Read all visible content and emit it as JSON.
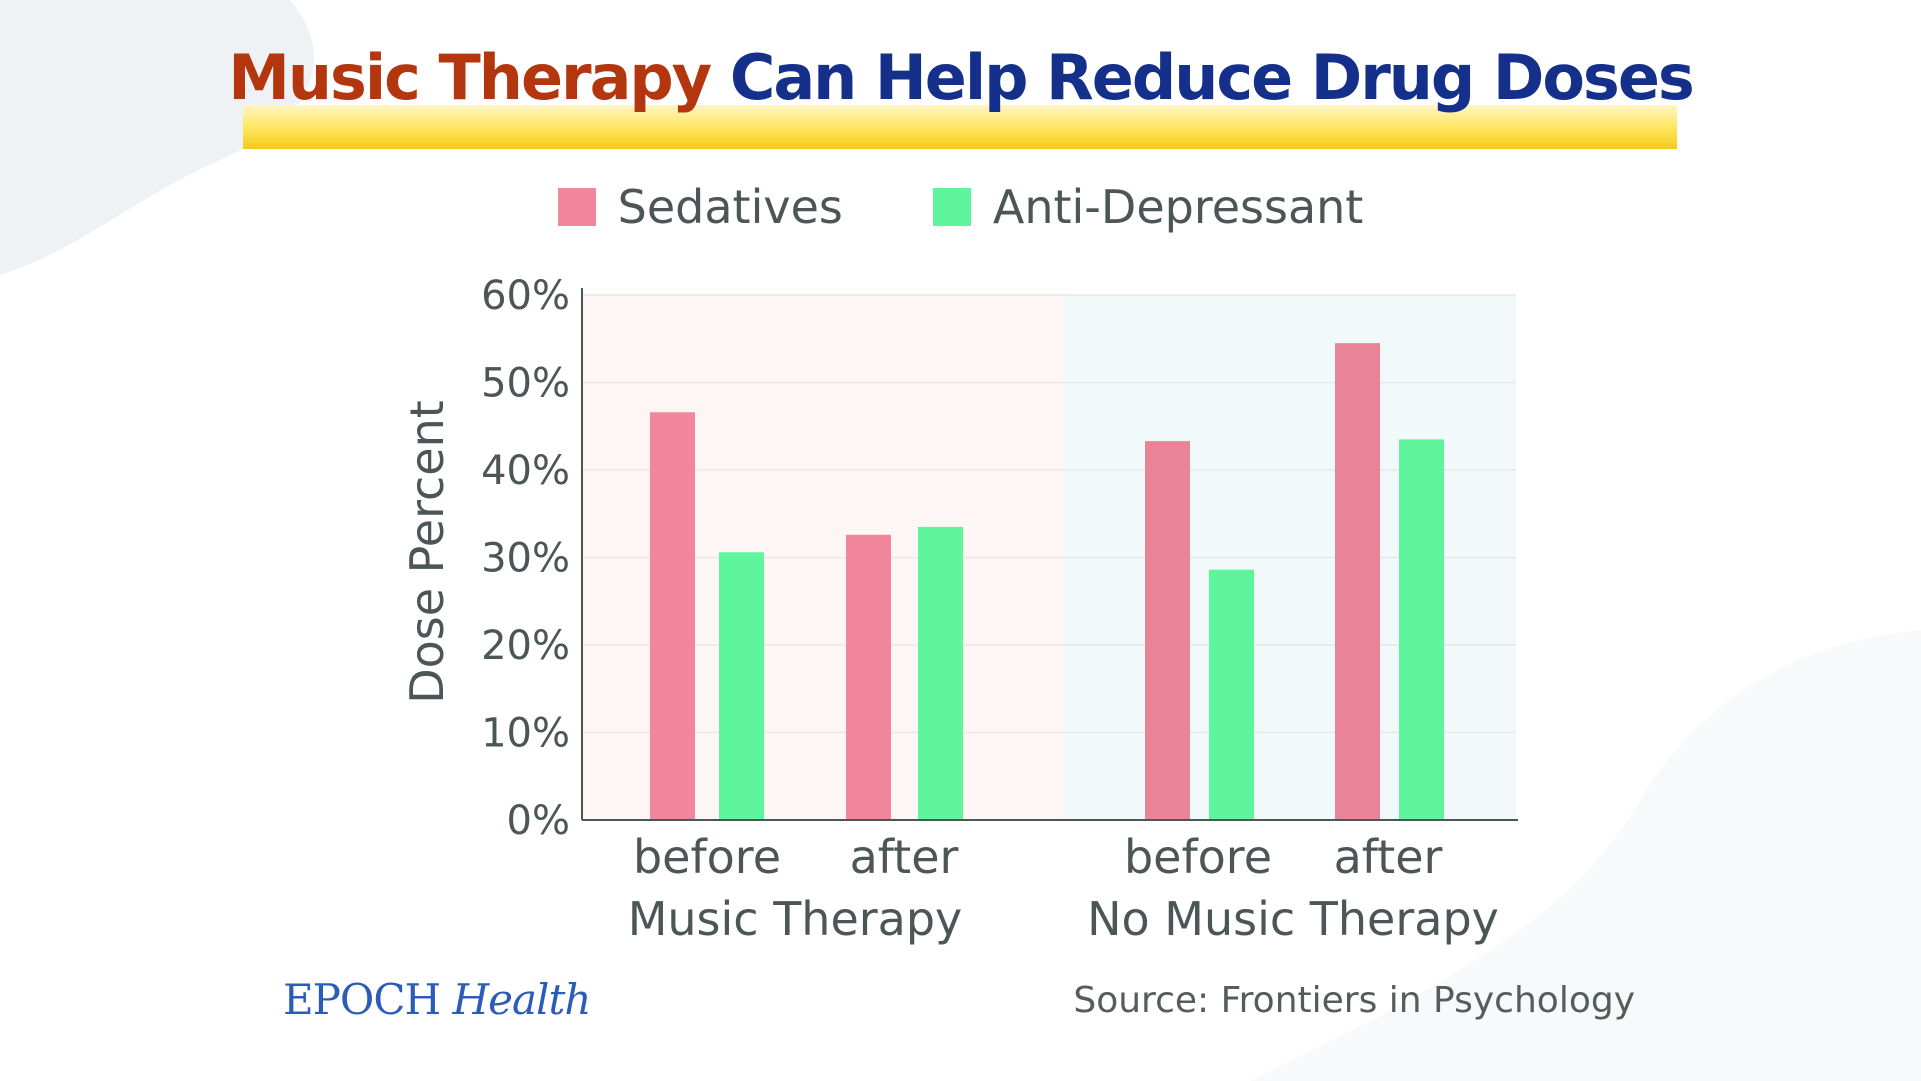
{
  "title": {
    "part1": "Music Therapy",
    "part2": "Can Help Reduce Drug Doses"
  },
  "colors": {
    "sedatives_left": "#f2869b",
    "sedatives_right": "#e98398",
    "anti_depressant": "#5ef59c",
    "title_orange": "#b3360f",
    "title_blue": "#14308a",
    "text_gray": "#4d5656",
    "panel_left": "#fdf6f4",
    "panel_right": "#f1f9fb"
  },
  "chart_data": {
    "type": "bar",
    "title": "Music Therapy Can Help Reduce Drug Doses",
    "ylabel": "Dose Percent",
    "xlabel": "",
    "ylim": [
      0,
      60
    ],
    "y_ticks": [
      "0%",
      "10%",
      "20%",
      "30%",
      "40%",
      "50%",
      "60%"
    ],
    "y_tick_values": [
      0,
      10,
      20,
      30,
      40,
      50,
      60
    ],
    "grid": true,
    "legend_placement": "top",
    "groups": [
      {
        "name": "Music Therapy",
        "categories": [
          "before",
          "after"
        ],
        "series": [
          {
            "name": "Sedatives",
            "values": [
              46.6,
              32.6
            ]
          },
          {
            "name": "Anti-Depressant",
            "values": [
              30.6,
              33.5
            ]
          }
        ]
      },
      {
        "name": "No Music Therapy",
        "categories": [
          "before",
          "after"
        ],
        "series": [
          {
            "name": "Sedatives",
            "values": [
              43.3,
              54.5
            ]
          },
          {
            "name": "Anti-Depressant",
            "values": [
              28.6,
              43.5
            ]
          }
        ]
      }
    ]
  },
  "legend": {
    "items": [
      "Sedatives",
      "Anti-Depressant"
    ]
  },
  "brand": {
    "main": "EPOCH",
    "italic": "Health"
  },
  "source": "Source: Frontiers in Psychology"
}
